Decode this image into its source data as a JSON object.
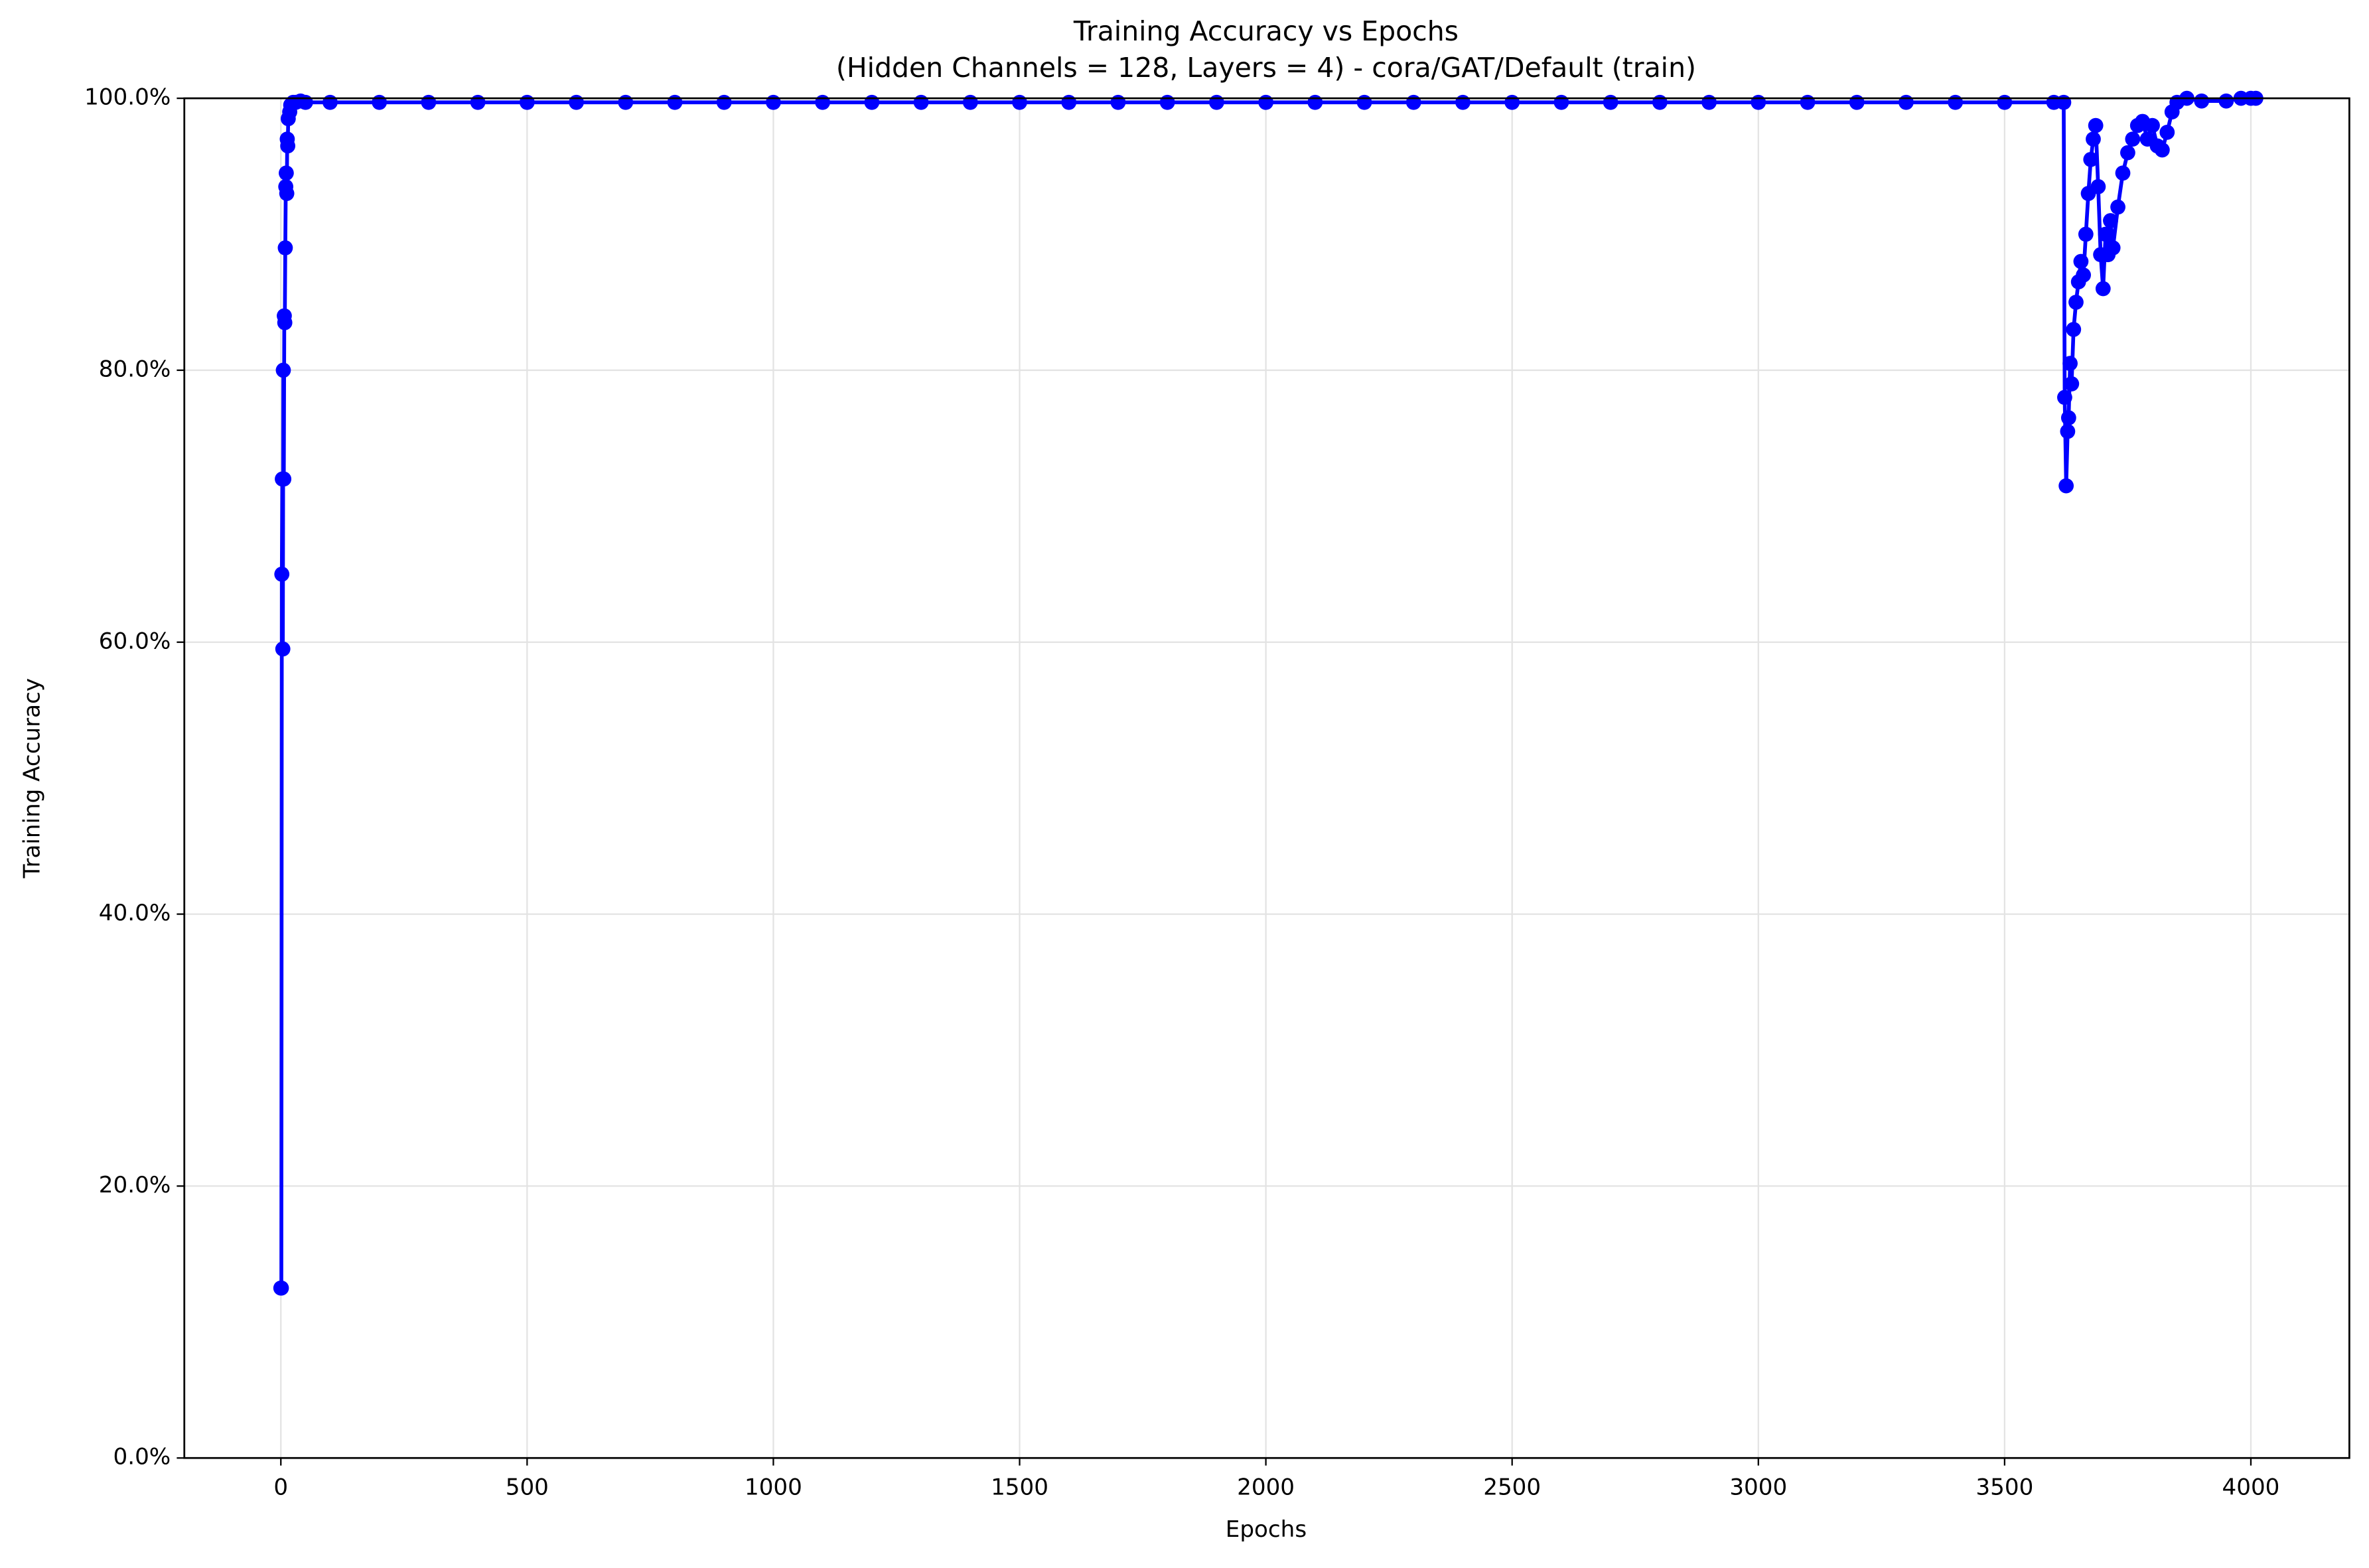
{
  "chart_data": {
    "type": "line",
    "title": "Training Accuracy vs Epochs",
    "subtitle": "(Hidden Channels = 128, Layers = 4) - cora/GAT/Default (train)",
    "xlabel": "Epochs",
    "ylabel": "Training Accuracy",
    "xlim": [
      -196,
      4200
    ],
    "ylim": [
      0,
      100
    ],
    "xticks": [
      0,
      500,
      1000,
      1500,
      2000,
      2500,
      3000,
      3500,
      4000
    ],
    "yticks": [
      {
        "value": 0,
        "label": "0.0%"
      },
      {
        "value": 20,
        "label": "20.0%"
      },
      {
        "value": 40,
        "label": "40.0%"
      },
      {
        "value": 60,
        "label": "60.0%"
      },
      {
        "value": 80,
        "label": "80.0%"
      },
      {
        "value": 100,
        "label": "100.0%"
      }
    ],
    "grid": true,
    "series": [
      {
        "color": "#0000ff",
        "x": [
          0,
          1,
          2,
          3,
          4,
          5,
          6,
          7,
          8,
          9,
          10,
          11,
          12,
          13,
          14,
          15,
          18,
          20,
          25,
          30,
          40,
          50,
          100,
          200,
          300,
          400,
          500,
          600,
          700,
          800,
          900,
          1000,
          1100,
          1200,
          1300,
          1400,
          1500,
          1600,
          1700,
          1800,
          1900,
          2000,
          2100,
          2200,
          2300,
          2400,
          2500,
          2600,
          2700,
          2800,
          2900,
          3000,
          3100,
          3200,
          3300,
          3400,
          3500,
          3600,
          3620,
          3622,
          3625,
          3628,
          3630,
          3633,
          3636,
          3640,
          3645,
          3650,
          3655,
          3660,
          3665,
          3670,
          3675,
          3680,
          3685,
          3690,
          3695,
          3700,
          3705,
          3710,
          3715,
          3720,
          3730,
          3740,
          3750,
          3760,
          3770,
          3780,
          3790,
          3800,
          3810,
          3820,
          3830,
          3840,
          3850,
          3870,
          3900,
          3950,
          3980,
          4000,
          4010
        ],
        "values": [
          12.5,
          12.5,
          65,
          72,
          59.5,
          80,
          72,
          84,
          83.5,
          89,
          93.5,
          94.5,
          93,
          97,
          96.5,
          98.5,
          99,
          99.5,
          99.7,
          99.7,
          99.8,
          99.7,
          99.7,
          99.7,
          99.7,
          99.7,
          99.7,
          99.7,
          99.7,
          99.7,
          99.7,
          99.7,
          99.7,
          99.7,
          99.7,
          99.7,
          99.7,
          99.7,
          99.7,
          99.7,
          99.7,
          99.7,
          99.7,
          99.7,
          99.7,
          99.7,
          99.7,
          99.7,
          99.7,
          99.7,
          99.7,
          99.7,
          99.7,
          99.7,
          99.7,
          99.7,
          99.7,
          99.7,
          99.7,
          78,
          71.5,
          75.5,
          76.5,
          80.5,
          79,
          83,
          85,
          86.5,
          88,
          87,
          90,
          93,
          95.5,
          97,
          98,
          93.5,
          88.5,
          86,
          90,
          88.5,
          91,
          89,
          92,
          94.5,
          96,
          97,
          98,
          98.3,
          97,
          98,
          96.5,
          96.2,
          97.5,
          99,
          99.7,
          100,
          99.8,
          99.8,
          100,
          100,
          100
        ]
      }
    ]
  }
}
